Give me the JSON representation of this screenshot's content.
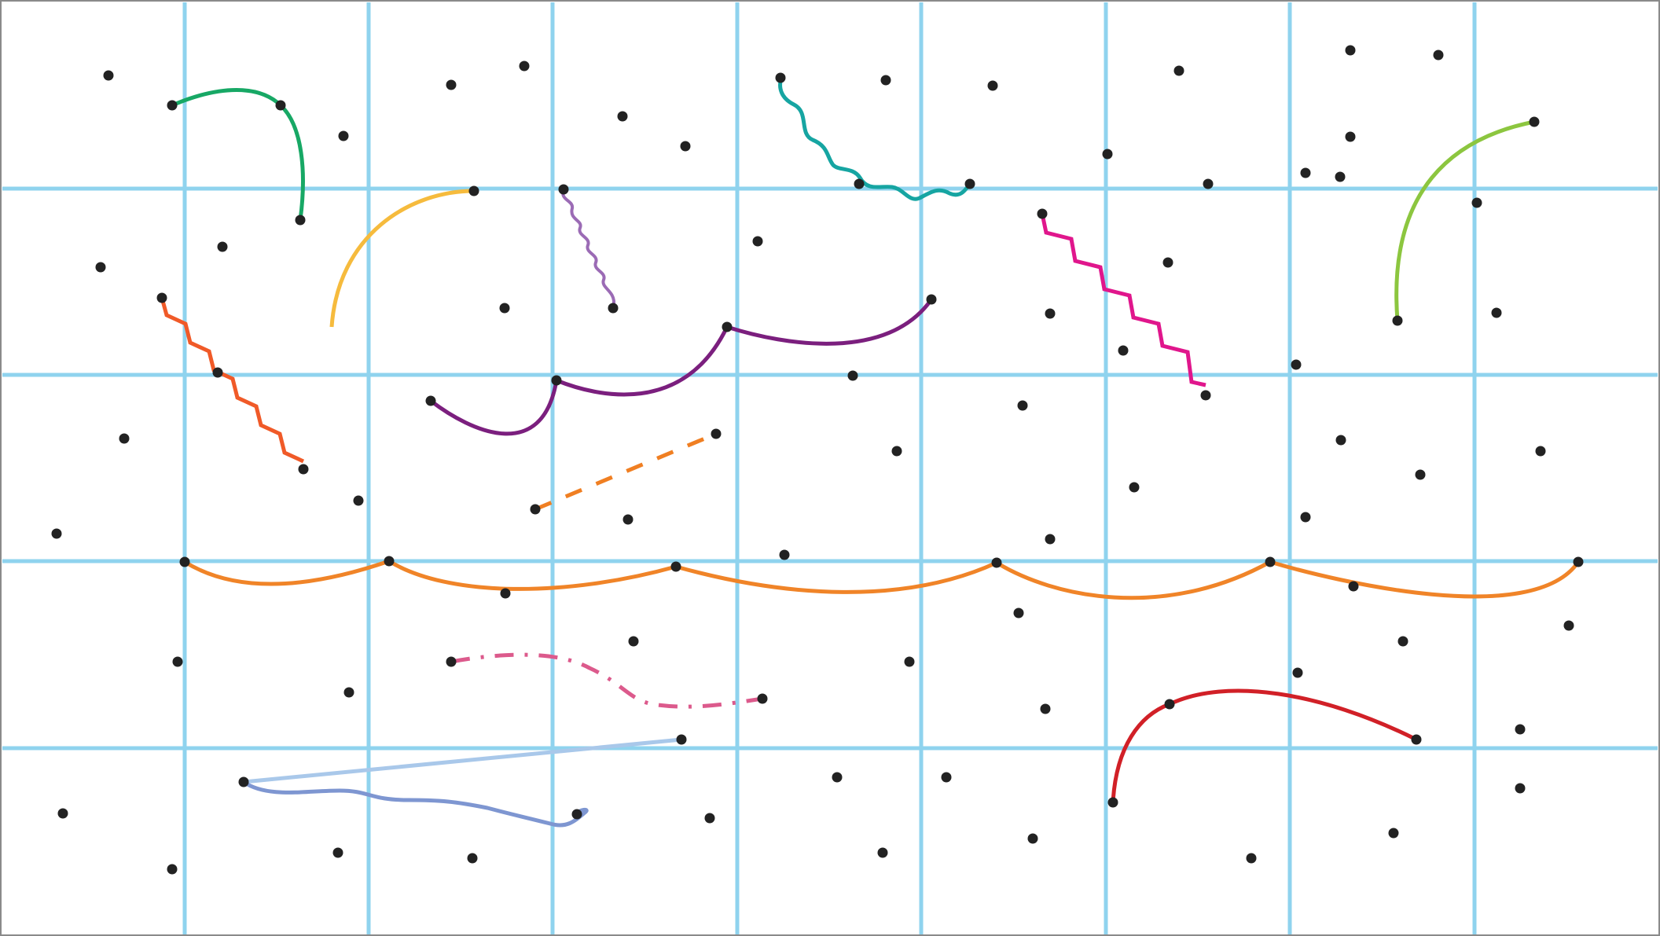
{
  "colors": {
    "background": "#ffffff",
    "border": "#8a8a8a",
    "grid": "#8fd3ee",
    "dot": "#222222"
  },
  "diagram": {
    "kind": "dots-and-curves-puzzle",
    "grid": {
      "columns": 9,
      "rows": 5
    },
    "dot_count": 95,
    "curves": [
      {
        "name": "green-arc",
        "color": "#17a865",
        "style": "solid"
      },
      {
        "name": "yellow-arc",
        "color": "#f6bb3d",
        "style": "solid"
      },
      {
        "name": "violet-squiggle",
        "color": "#9b6bb5",
        "style": "wavy"
      },
      {
        "name": "teal-squiggle",
        "color": "#16a5a2",
        "style": "wavy"
      },
      {
        "name": "lime-arc",
        "color": "#8cc63f",
        "style": "solid"
      },
      {
        "name": "red-orange-zigzag",
        "color": "#f05a28",
        "style": "zigzag"
      },
      {
        "name": "magenta-zigzag",
        "color": "#e0168c",
        "style": "zigzag"
      },
      {
        "name": "purple-chain",
        "color": "#7b1f7e",
        "style": "solid"
      },
      {
        "name": "orange-dashed",
        "color": "#f07f22",
        "style": "dashed"
      },
      {
        "name": "orange-chain",
        "color": "#f08428",
        "style": "solid"
      },
      {
        "name": "pink-dashed",
        "color": "#dc5a8c",
        "style": "dashed"
      },
      {
        "name": "red-arc",
        "color": "#d12027",
        "style": "solid"
      },
      {
        "name": "light-blue-line",
        "color": "#a9c8ea",
        "style": "solid"
      },
      {
        "name": "periwinkle-squiggle",
        "color": "#7e96d1",
        "style": "wavy"
      }
    ]
  }
}
